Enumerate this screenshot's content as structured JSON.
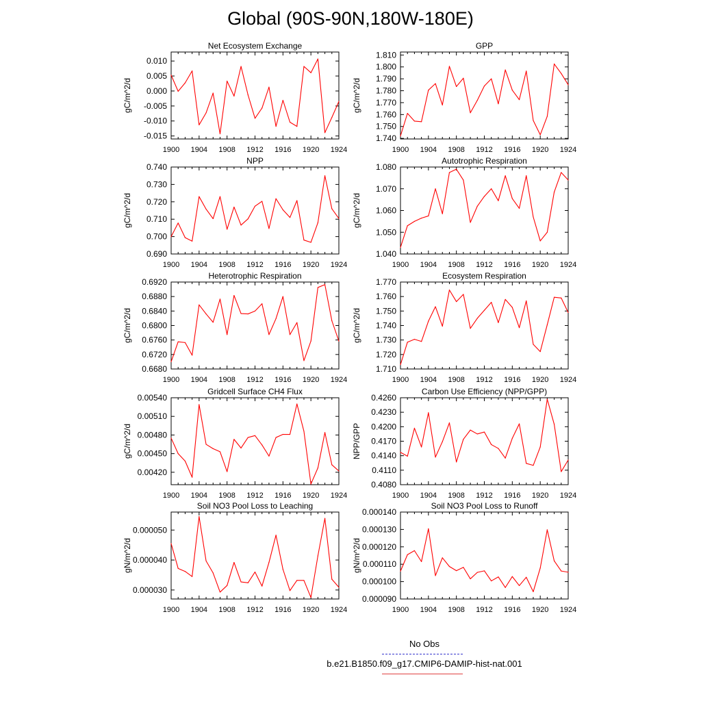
{
  "figure": {
    "title": "Global (90S-90N,180W-180E)"
  },
  "colors": {
    "series": "#ff0000",
    "obs": "#3333cc",
    "axis": "#000000"
  },
  "legend": {
    "obs_label": "No Obs",
    "model_label": "b.e21.B1850.f09_g17.CMIP6-DAMIP-hist-nat.001"
  },
  "chart_data": [
    {
      "type": "line",
      "title": "Net Ecosystem Exchange",
      "ylabel": "gC/m^2/d",
      "xlim": [
        1900,
        1924
      ],
      "ylim": [
        -0.016,
        0.013
      ],
      "yticks": [
        -0.015,
        -0.01,
        -0.005,
        0.0,
        0.005,
        0.01
      ],
      "ytick_labels": [
        "-0.015",
        "-0.010",
        "-0.005",
        "0.000",
        "0.005",
        "0.010"
      ],
      "xticks": [
        1900,
        1904,
        1908,
        1912,
        1916,
        1920,
        1924
      ],
      "xtick_labels": [
        "1900",
        "1904",
        "1908",
        "1912",
        "1916",
        "1920",
        "1924"
      ],
      "series": [
        {
          "x": [
            1900,
            1901,
            1902,
            1903,
            1904,
            1905,
            1906,
            1907,
            1908,
            1909,
            1910,
            1911,
            1912,
            1913,
            1914,
            1915,
            1916,
            1917,
            1918,
            1919,
            1920,
            1921,
            1922,
            1923,
            1924
          ],
          "values": [
            0.0053,
            -0.0001,
            0.0027,
            0.0067,
            -0.0113,
            -0.0073,
            -0.0007,
            -0.0143,
            0.0033,
            -0.0017,
            0.0082,
            -0.0013,
            -0.0091,
            -0.0057,
            0.0013,
            -0.0118,
            -0.0031,
            -0.0104,
            -0.0118,
            0.0082,
            0.0061,
            0.0107,
            -0.0139,
            -0.0088,
            -0.0035
          ]
        }
      ]
    },
    {
      "type": "line",
      "title": "GPP",
      "ylabel": "gC/m^2/d",
      "xlim": [
        1900,
        1924
      ],
      "ylim": [
        1.7395,
        1.8125
      ],
      "yticks": [
        1.74,
        1.75,
        1.76,
        1.77,
        1.78,
        1.79,
        1.8,
        1.81
      ],
      "ytick_labels": [
        "1.740",
        "1.750",
        "1.760",
        "1.770",
        "1.780",
        "1.790",
        "1.800",
        "1.810"
      ],
      "xticks": [
        1900,
        1904,
        1908,
        1912,
        1916,
        1920,
        1924
      ],
      "xtick_labels": [
        "1900",
        "1904",
        "1908",
        "1912",
        "1916",
        "1920",
        "1924"
      ],
      "series": [
        {
          "x": [
            1900,
            1901,
            1902,
            1903,
            1904,
            1905,
            1906,
            1907,
            1908,
            1909,
            1910,
            1911,
            1912,
            1913,
            1914,
            1915,
            1916,
            1917,
            1918,
            1919,
            1920,
            1921,
            1922,
            1923,
            1924
          ],
          "values": [
            1.742,
            1.761,
            1.7545,
            1.754,
            1.7805,
            1.786,
            1.768,
            1.8005,
            1.7835,
            1.7905,
            1.7615,
            1.772,
            1.784,
            1.79,
            1.769,
            1.7975,
            1.7805,
            1.7725,
            1.7965,
            1.755,
            1.743,
            1.7585,
            1.8025,
            1.7945,
            1.785
          ]
        }
      ]
    },
    {
      "type": "line",
      "title": "NPP",
      "ylabel": "gC/m^2/d",
      "xlim": [
        1900,
        1924
      ],
      "ylim": [
        0.69,
        0.74
      ],
      "yticks": [
        0.69,
        0.7,
        0.71,
        0.72,
        0.73,
        0.74
      ],
      "ytick_labels": [
        "0.690",
        "0.700",
        "0.710",
        "0.720",
        "0.730",
        "0.740"
      ],
      "xticks": [
        1900,
        1904,
        1908,
        1912,
        1916,
        1920,
        1924
      ],
      "xtick_labels": [
        "1900",
        "1904",
        "1908",
        "1912",
        "1916",
        "1920",
        "1924"
      ],
      "series": [
        {
          "x": [
            1900,
            1901,
            1902,
            1903,
            1904,
            1905,
            1906,
            1907,
            1908,
            1909,
            1910,
            1911,
            1912,
            1913,
            1914,
            1915,
            1916,
            1917,
            1918,
            1919,
            1920,
            1921,
            1922,
            1923,
            1924
          ],
          "values": [
            0.7,
            0.7078,
            0.6994,
            0.6974,
            0.723,
            0.7158,
            0.7103,
            0.723,
            0.7042,
            0.717,
            0.7066,
            0.7102,
            0.7175,
            0.7203,
            0.7046,
            0.7218,
            0.7154,
            0.711,
            0.7207,
            0.698,
            0.6967,
            0.708,
            0.735,
            0.716,
            0.7104
          ]
        }
      ]
    },
    {
      "type": "line",
      "title": "Autotrophic Respiration",
      "ylabel": "gC/m^2/d",
      "xlim": [
        1900,
        1924
      ],
      "ylim": [
        1.04,
        1.08
      ],
      "yticks": [
        1.04,
        1.05,
        1.06,
        1.07,
        1.08
      ],
      "ytick_labels": [
        "1.040",
        "1.050",
        "1.060",
        "1.070",
        "1.080"
      ],
      "xticks": [
        1900,
        1904,
        1908,
        1912,
        1916,
        1920,
        1924
      ],
      "xtick_labels": [
        "1900",
        "1904",
        "1908",
        "1912",
        "1916",
        "1920",
        "1924"
      ],
      "series": [
        {
          "x": [
            1900,
            1901,
            1902,
            1903,
            1904,
            1905,
            1906,
            1907,
            1908,
            1909,
            1910,
            1911,
            1912,
            1913,
            1914,
            1915,
            1916,
            1917,
            1918,
            1919,
            1920,
            1921,
            1922,
            1923,
            1924
          ],
          "values": [
            1.043,
            1.053,
            1.055,
            1.0565,
            1.0575,
            1.07,
            1.0585,
            1.0775,
            1.079,
            1.074,
            1.0545,
            1.062,
            1.0665,
            1.07,
            1.0645,
            1.076,
            1.0655,
            1.061,
            1.076,
            1.057,
            1.046,
            1.05,
            1.0685,
            1.0775,
            1.074
          ]
        }
      ]
    },
    {
      "type": "line",
      "title": "Heterotrophic Respiration",
      "ylabel": "gC/m^2/d",
      "xlim": [
        1900,
        1924
      ],
      "ylim": [
        0.668,
        0.692
      ],
      "yticks": [
        0.668,
        0.672,
        0.676,
        0.68,
        0.684,
        0.688,
        0.692
      ],
      "ytick_labels": [
        "0.6680",
        "0.6720",
        "0.6760",
        "0.6800",
        "0.6840",
        "0.6880",
        "0.6920"
      ],
      "xticks": [
        1900,
        1904,
        1908,
        1912,
        1916,
        1920,
        1924
      ],
      "xtick_labels": [
        "1900",
        "1904",
        "1908",
        "1912",
        "1916",
        "1920",
        "1924"
      ],
      "series": [
        {
          "x": [
            1900,
            1901,
            1902,
            1903,
            1904,
            1905,
            1906,
            1907,
            1908,
            1909,
            1910,
            1911,
            1912,
            1913,
            1914,
            1915,
            1916,
            1917,
            1918,
            1919,
            1920,
            1921,
            1922,
            1923,
            1924
          ],
          "values": [
            0.67,
            0.6755,
            0.6753,
            0.6718,
            0.6857,
            0.6832,
            0.6809,
            0.6873,
            0.6775,
            0.6883,
            0.6833,
            0.6832,
            0.684,
            0.686,
            0.6775,
            0.6819,
            0.688,
            0.6775,
            0.6808,
            0.6703,
            0.6757,
            0.6905,
            0.6913,
            0.6813,
            0.6757
          ]
        }
      ]
    },
    {
      "type": "line",
      "title": "Ecosystem Respiration",
      "ylabel": "gC/m^2/d",
      "xlim": [
        1900,
        1924
      ],
      "ylim": [
        1.71,
        1.77
      ],
      "yticks": [
        1.71,
        1.72,
        1.73,
        1.74,
        1.75,
        1.76,
        1.77
      ],
      "ytick_labels": [
        "1.710",
        "1.720",
        "1.730",
        "1.740",
        "1.750",
        "1.760",
        "1.770"
      ],
      "xticks": [
        1900,
        1904,
        1908,
        1912,
        1916,
        1920,
        1924
      ],
      "xtick_labels": [
        "1900",
        "1904",
        "1908",
        "1912",
        "1916",
        "1920",
        "1924"
      ],
      "series": [
        {
          "x": [
            1900,
            1901,
            1902,
            1903,
            1904,
            1905,
            1906,
            1907,
            1908,
            1909,
            1910,
            1911,
            1912,
            1913,
            1914,
            1915,
            1916,
            1917,
            1918,
            1919,
            1920,
            1921,
            1922,
            1923,
            1924
          ],
          "values": [
            1.713,
            1.7285,
            1.7305,
            1.729,
            1.743,
            1.753,
            1.7395,
            1.7645,
            1.7565,
            1.7615,
            1.738,
            1.745,
            1.7505,
            1.756,
            1.742,
            1.758,
            1.7525,
            1.7385,
            1.757,
            1.727,
            1.722,
            1.7405,
            1.7595,
            1.759,
            1.749
          ]
        }
      ]
    },
    {
      "type": "line",
      "title": "Gridcell Surface CH4 Flux",
      "ylabel": "gC/m^2/d",
      "xlim": [
        1900,
        1924
      ],
      "ylim": [
        0.004,
        0.0054
      ],
      "yticks": [
        0.0042,
        0.0045,
        0.0048,
        0.0051,
        0.0054
      ],
      "ytick_labels": [
        "0.00420",
        "0.00450",
        "0.00480",
        "0.00510",
        "0.00540"
      ],
      "xticks": [
        1900,
        1904,
        1908,
        1912,
        1916,
        1920,
        1924
      ],
      "xtick_labels": [
        "1900",
        "1904",
        "1908",
        "1912",
        "1916",
        "1920",
        "1924"
      ],
      "series": [
        {
          "x": [
            1900,
            1901,
            1902,
            1903,
            1904,
            1905,
            1906,
            1907,
            1908,
            1909,
            1910,
            1911,
            1912,
            1913,
            1914,
            1915,
            1916,
            1917,
            1918,
            1919,
            1920,
            1921,
            1922,
            1923,
            1924
          ],
          "values": [
            0.00475,
            0.0045,
            0.00438,
            0.00412,
            0.00529,
            0.00465,
            0.00458,
            0.00453,
            0.00421,
            0.00473,
            0.00459,
            0.00476,
            0.00479,
            0.00464,
            0.00446,
            0.00476,
            0.00481,
            0.00481,
            0.0053,
            0.00486,
            0.00401,
            0.00427,
            0.00484,
            0.00432,
            0.00422
          ]
        }
      ]
    },
    {
      "type": "line",
      "title": "Carbon Use Efficiency (NPP/GPP)",
      "ylabel": "NPP/GPP",
      "xlim": [
        1900,
        1924
      ],
      "ylim": [
        0.408,
        0.426
      ],
      "yticks": [
        0.408,
        0.411,
        0.414,
        0.417,
        0.42,
        0.423,
        0.426
      ],
      "ytick_labels": [
        "0.4080",
        "0.4110",
        "0.4140",
        "0.4170",
        "0.4200",
        "0.4230",
        "0.4260"
      ],
      "xticks": [
        1900,
        1904,
        1908,
        1912,
        1916,
        1920,
        1924
      ],
      "xtick_labels": [
        "1900",
        "1904",
        "1908",
        "1912",
        "1916",
        "1920",
        "1924"
      ],
      "series": [
        {
          "x": [
            1900,
            1901,
            1902,
            1903,
            1904,
            1905,
            1906,
            1907,
            1908,
            1909,
            1910,
            1911,
            1912,
            1913,
            1914,
            1915,
            1916,
            1917,
            1918,
            1919,
            1920,
            1921,
            1922,
            1923,
            1924
          ],
          "values": [
            0.4147,
            0.4139,
            0.4197,
            0.4158,
            0.4229,
            0.4137,
            0.4169,
            0.4208,
            0.4127,
            0.4174,
            0.4193,
            0.4185,
            0.4189,
            0.4163,
            0.4155,
            0.4135,
            0.4176,
            0.4206,
            0.4124,
            0.412,
            0.4158,
            0.4257,
            0.4205,
            0.4107,
            0.4131
          ]
        }
      ]
    },
    {
      "type": "line",
      "title": "Soil NO3 Pool Loss to Leaching",
      "ylabel": "gN/m^2/d",
      "xlim": [
        1900,
        1924
      ],
      "ylim": [
        2.7e-05,
        5.6e-05
      ],
      "yticks": [
        3e-05,
        4e-05,
        5e-05
      ],
      "ytick_labels": [
        "0.000030",
        "0.000040",
        "0.000050"
      ],
      "xticks": [
        1900,
        1904,
        1908,
        1912,
        1916,
        1920,
        1924
      ],
      "xtick_labels": [
        "1900",
        "1904",
        "1908",
        "1912",
        "1916",
        "1920",
        "1924"
      ],
      "series": [
        {
          "x": [
            1900,
            1901,
            1902,
            1903,
            1904,
            1905,
            1906,
            1907,
            1908,
            1909,
            1910,
            1911,
            1912,
            1913,
            1914,
            1915,
            1916,
            1917,
            1918,
            1919,
            1920,
            1921,
            1922,
            1923,
            1924
          ],
          "values": [
            4.55e-05,
            3.72e-05,
            3.62e-05,
            3.45e-05,
            5.45e-05,
            3.97e-05,
            3.57e-05,
            2.93e-05,
            3.15e-05,
            3.92e-05,
            3.27e-05,
            3.24e-05,
            3.6e-05,
            3.13e-05,
            3.92e-05,
            4.83e-05,
            3.69e-05,
            2.98e-05,
            3.32e-05,
            3.32e-05,
            2.75e-05,
            4.14e-05,
            5.39e-05,
            3.36e-05,
            3.09e-05
          ]
        }
      ]
    },
    {
      "type": "line",
      "title": "Soil NO3 Pool Loss to Runoff",
      "ylabel": "gN/m^2/d",
      "xlim": [
        1900,
        1924
      ],
      "ylim": [
        9e-05,
        0.00014
      ],
      "yticks": [
        9e-05,
        0.0001,
        0.00011,
        0.00012,
        0.00013,
        0.00014
      ],
      "ytick_labels": [
        "0.000090",
        "0.000100",
        "0.000110",
        "0.000120",
        "0.000130",
        "0.000140"
      ],
      "xticks": [
        1900,
        1904,
        1908,
        1912,
        1916,
        1920,
        1924
      ],
      "xtick_labels": [
        "1900",
        "1904",
        "1908",
        "1912",
        "1916",
        "1920",
        "1924"
      ],
      "series": [
        {
          "x": [
            1900,
            1901,
            1902,
            1903,
            1904,
            1905,
            1906,
            1907,
            1908,
            1909,
            1910,
            1911,
            1912,
            1913,
            1914,
            1915,
            1916,
            1917,
            1918,
            1919,
            1920,
            1921,
            1922,
            1923,
            1924
          ],
          "values": [
            0.000106,
            0.0001155,
            0.0001178,
            0.0001115,
            0.0001304,
            0.0001034,
            0.0001137,
            0.0001087,
            0.0001063,
            0.0001082,
            0.0001016,
            0.0001053,
            0.0001062,
            0.0001004,
            0.0001027,
            9.66e-05,
            0.0001029,
            9.77e-05,
            0.0001025,
            9.42e-05,
            0.0001078,
            0.0001298,
            0.0001119,
            0.0001061,
            0.0001054
          ]
        }
      ]
    }
  ]
}
